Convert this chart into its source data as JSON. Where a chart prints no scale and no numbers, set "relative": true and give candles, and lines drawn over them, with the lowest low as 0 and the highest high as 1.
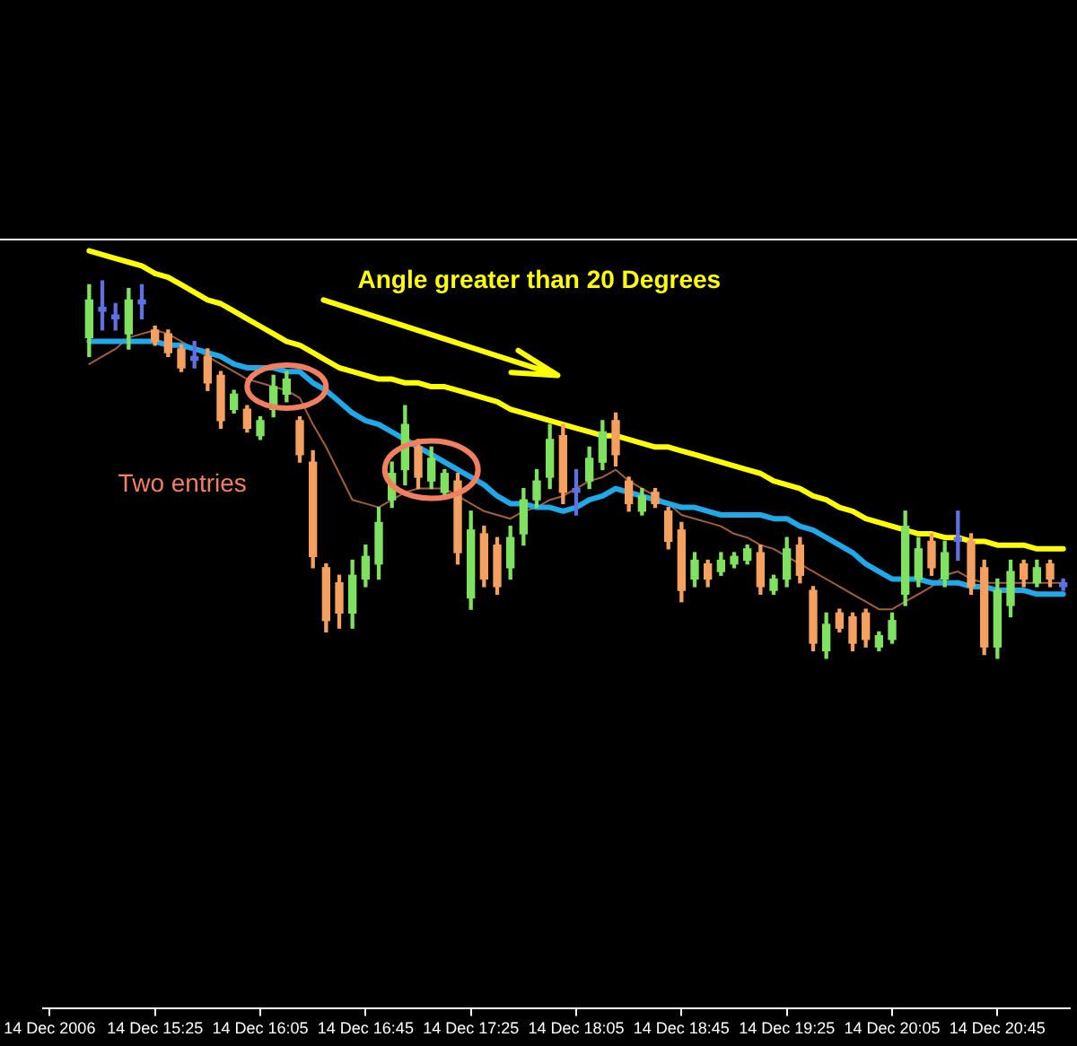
{
  "chart_data": {
    "type": "candlestick",
    "relative": true,
    "categories": [
      "14 Dec 2006",
      null,
      null,
      null,
      null,
      null,
      null,
      null,
      "14 Dec 15:25",
      null,
      null,
      null,
      null,
      null,
      null,
      null,
      "14 Dec 16:05",
      null,
      null,
      null,
      null,
      null,
      null,
      null,
      "14 Dec 16:45",
      null,
      null,
      null,
      null,
      null,
      null,
      null,
      "14 Dec 17:25",
      null,
      null,
      null,
      null,
      null,
      null,
      null,
      "14 Dec 18:05",
      null,
      null,
      null,
      null,
      null,
      null,
      null,
      "14 Dec 18:45",
      null,
      null,
      null,
      null,
      null,
      null,
      null,
      "14 Dec 19:25",
      null,
      null,
      null,
      null,
      null,
      null,
      null,
      "14 Dec 20:05",
      null,
      null,
      null,
      null,
      null,
      null,
      null,
      "14 Dec 20:45",
      null,
      null,
      null,
      null,
      null
    ],
    "ohlc": [
      null,
      null,
      null,
      [
        0.85,
        0.99,
        0.8,
        0.95
      ],
      [
        0.93,
        1,
        0.87,
        0.92
      ],
      [
        0.9,
        0.94,
        0.87,
        0.91
      ],
      [
        0.86,
        0.98,
        0.82,
        0.95
      ],
      [
        0.95,
        0.99,
        0.9,
        0.94
      ],
      [
        0.87,
        0.88,
        0.83,
        0.84
      ],
      [
        0.86,
        0.87,
        0.8,
        0.81
      ],
      [
        0.82,
        0.83,
        0.76,
        0.77
      ],
      [
        0.8,
        0.84,
        0.77,
        0.79
      ],
      [
        0.8,
        0.82,
        0.71,
        0.73
      ],
      [
        0.75,
        0.76,
        0.61,
        0.63
      ],
      [
        0.66,
        0.71,
        0.65,
        0.7
      ],
      [
        0.66,
        0.67,
        0.6,
        0.61
      ],
      [
        0.59,
        0.64,
        0.58,
        0.63
      ],
      [
        0.66,
        0.75,
        0.64,
        0.72
      ],
      [
        0.7,
        0.76,
        0.68,
        0.74
      ],
      [
        0.63,
        0.64,
        0.52,
        0.54
      ],
      [
        0.52,
        0.55,
        0.24,
        0.27
      ],
      [
        0.24,
        0.25,
        0.07,
        0.1
      ],
      [
        0.2,
        0.22,
        0.08,
        0.12
      ],
      [
        0.12,
        0.26,
        0.08,
        0.22
      ],
      [
        0.21,
        0.3,
        0.19,
        0.27
      ],
      [
        0.25,
        0.4,
        0.21,
        0.36
      ],
      [
        0.42,
        0.52,
        0.4,
        0.49
      ],
      [
        0.5,
        0.67,
        0.46,
        0.62
      ],
      [
        0.56,
        0.58,
        0.45,
        0.48
      ],
      [
        0.47,
        0.56,
        0.45,
        0.53
      ],
      [
        0.44,
        0.5,
        0.43,
        0.49
      ],
      [
        0.47,
        0.49,
        0.25,
        0.28
      ],
      [
        0.16,
        0.39,
        0.13,
        0.34
      ],
      [
        0.33,
        0.35,
        0.19,
        0.21
      ],
      [
        0.3,
        0.32,
        0.17,
        0.19
      ],
      [
        0.24,
        0.35,
        0.21,
        0.32
      ],
      [
        0.33,
        0.45,
        0.3,
        0.42
      ],
      [
        0.42,
        0.5,
        0.4,
        0.47
      ],
      [
        0.48,
        0.62,
        0.45,
        0.58
      ],
      [
        0.59,
        0.62,
        0.41,
        0.44
      ],
      [
        0.44,
        0.5,
        0.38,
        0.45
      ],
      [
        0.47,
        0.56,
        0.45,
        0.53
      ],
      [
        0.52,
        0.63,
        0.5,
        0.6
      ],
      [
        0.63,
        0.65,
        0.51,
        0.54
      ],
      [
        0.47,
        0.48,
        0.39,
        0.41
      ],
      [
        0.39,
        0.45,
        0.38,
        0.43
      ],
      [
        0.44,
        0.45,
        0.4,
        0.41
      ],
      [
        0.39,
        0.4,
        0.29,
        0.31
      ],
      [
        0.34,
        0.36,
        0.15,
        0.18
      ],
      [
        0.21,
        0.28,
        0.19,
        0.26
      ],
      [
        0.25,
        0.26,
        0.19,
        0.21
      ],
      [
        0.23,
        0.28,
        0.22,
        0.26
      ],
      [
        0.25,
        0.28,
        0.24,
        0.27
      ],
      [
        0.26,
        0.3,
        0.25,
        0.29
      ],
      [
        0.28,
        0.3,
        0.17,
        0.19
      ],
      [
        0.18,
        0.22,
        0.17,
        0.21
      ],
      [
        0.21,
        0.32,
        0.19,
        0.29
      ],
      [
        0.3,
        0.32,
        0.2,
        0.22
      ],
      [
        0.18,
        0.19,
        0.02,
        0.04
      ],
      [
        0.02,
        0.12,
        0,
        0.09
      ],
      [
        0.12,
        0.13,
        0.07,
        0.08
      ],
      [
        0.11,
        0.12,
        0.02,
        0.04
      ],
      [
        0.12,
        0.13,
        0.03,
        0.05
      ],
      [
        0.03,
        0.07,
        0.02,
        0.06
      ],
      [
        0.05,
        0.12,
        0.04,
        0.1
      ],
      [
        0.17,
        0.39,
        0.14,
        0.35
      ],
      [
        0.21,
        0.32,
        0.19,
        0.29
      ],
      [
        0.31,
        0.33,
        0.22,
        0.24
      ],
      [
        0.21,
        0.31,
        0.19,
        0.28
      ],
      [
        0.32,
        0.39,
        0.26,
        0.31
      ],
      [
        0.31,
        0.33,
        0.17,
        0.19
      ],
      [
        0.24,
        0.26,
        0.01,
        0.03
      ],
      [
        0.03,
        0.21,
        0,
        0.18
      ],
      [
        0.14,
        0.26,
        0.11,
        0.23
      ],
      [
        0.25,
        0.26,
        0.19,
        0.21
      ],
      [
        0.2,
        0.26,
        0.19,
        0.24
      ],
      [
        0.25,
        0.26,
        0.19,
        0.21
      ],
      [
        0.2,
        0.21,
        0.18,
        0.19
      ]
    ],
    "colors": [
      null,
      null,
      null,
      "#80e060",
      "#6070e0",
      "#6070e0",
      "#80e060",
      "#6070e0",
      "#f4a060",
      "#f4a060",
      "#f4a060",
      "#6070e0",
      "#f4a060",
      "#f4a060",
      "#80e060",
      "#f4a060",
      "#80e060",
      "#80e060",
      "#80e060",
      "#f4a060",
      "#f4a060",
      "#f4a060",
      "#f4a060",
      "#80e060",
      "#80e060",
      "#80e060",
      "#80e060",
      "#80e060",
      "#f4a060",
      "#80e060",
      "#80e060",
      "#f4a060",
      "#80e060",
      "#f4a060",
      "#f4a060",
      "#80e060",
      "#80e060",
      "#80e060",
      "#80e060",
      "#f4a060",
      "#6070e0",
      "#80e060",
      "#80e060",
      "#f4a060",
      "#f4a060",
      "#80e060",
      "#f4a060",
      "#f4a060",
      "#f4a060",
      "#80e060",
      "#f4a060",
      "#80e060",
      "#80e060",
      "#80e060",
      "#f4a060",
      "#80e060",
      "#80e060",
      "#f4a060",
      "#f4a060",
      "#80e060",
      "#f4a060",
      "#f4a060",
      "#f4a060",
      "#80e060",
      "#80e060",
      "#80e060",
      "#80e060",
      "#f4a060",
      "#80e060",
      "#6070e0",
      "#f4a060",
      "#f4a060",
      "#80e060",
      "#80e060",
      "#f4a060",
      "#80e060",
      "#f4a060",
      "#6070e0"
    ],
    "series": [
      {
        "type": "line",
        "color": "#ffff00",
        "values": [
          null,
          null,
          null,
          1.08,
          1.07,
          1.06,
          1.05,
          1.04,
          1.02,
          1.01,
          0.99,
          0.97,
          0.95,
          0.94,
          0.92,
          0.9,
          0.88,
          0.86,
          0.84,
          0.83,
          0.81,
          0.79,
          0.77,
          0.76,
          0.75,
          0.74,
          0.74,
          0.73,
          0.73,
          0.72,
          0.72,
          0.71,
          0.7,
          0.69,
          0.68,
          0.66,
          0.65,
          0.64,
          0.63,
          0.62,
          0.61,
          0.6,
          0.59,
          0.59,
          0.58,
          0.57,
          0.56,
          0.56,
          0.55,
          0.54,
          0.53,
          0.52,
          0.51,
          0.5,
          0.49,
          0.47,
          0.46,
          0.45,
          0.43,
          0.42,
          0.4,
          0.39,
          0.37,
          0.36,
          0.35,
          0.34,
          0.33,
          0.33,
          0.32,
          0.32,
          0.31,
          0.31,
          0.3,
          0.3,
          0.3,
          0.29,
          0.29,
          0.29
        ]
      },
      {
        "type": "line",
        "color": "#20a8e8",
        "values": [
          null,
          null,
          null,
          0.84,
          0.84,
          0.84,
          0.84,
          0.84,
          0.84,
          0.83,
          0.83,
          0.82,
          0.81,
          0.8,
          0.78,
          0.77,
          0.77,
          0.77,
          0.76,
          0.76,
          0.73,
          0.71,
          0.68,
          0.65,
          0.63,
          0.62,
          0.6,
          0.58,
          0.56,
          0.54,
          0.52,
          0.5,
          0.48,
          0.46,
          0.43,
          0.41,
          0.41,
          0.4,
          0.4,
          0.39,
          0.4,
          0.42,
          0.43,
          0.45,
          0.44,
          0.43,
          0.42,
          0.41,
          0.4,
          0.4,
          0.39,
          0.38,
          0.38,
          0.38,
          0.38,
          0.37,
          0.37,
          0.35,
          0.34,
          0.32,
          0.3,
          0.28,
          0.25,
          0.23,
          0.21,
          0.21,
          0.21,
          0.2,
          0.2,
          0.2,
          0.19,
          0.19,
          0.18,
          0.18,
          0.18,
          0.17,
          0.17,
          0.17
        ]
      },
      {
        "type": "line",
        "color": "#a0603c",
        "values": [
          null,
          null,
          null,
          0.78,
          0.8,
          0.82,
          0.85,
          0.86,
          0.87,
          0.86,
          0.84,
          0.82,
          0.8,
          0.78,
          0.76,
          0.74,
          0.73,
          0.72,
          0.71,
          0.69,
          0.62,
          0.56,
          0.49,
          0.42,
          0.41,
          0.4,
          0.42,
          0.44,
          0.45,
          0.45,
          0.45,
          0.43,
          0.41,
          0.39,
          0.38,
          0.37,
          0.39,
          0.4,
          0.42,
          0.43,
          0.45,
          0.47,
          0.48,
          0.5,
          0.47,
          0.45,
          0.43,
          0.41,
          0.38,
          0.37,
          0.36,
          0.35,
          0.33,
          0.32,
          0.3,
          0.29,
          0.27,
          0.25,
          0.23,
          0.21,
          0.19,
          0.17,
          0.15,
          0.13,
          0.13,
          0.15,
          0.17,
          0.19,
          0.22,
          0.23,
          0.21,
          0.2,
          0.2,
          0.2,
          0.2,
          0.2,
          0.2,
          0.2
        ]
      }
    ],
    "annotations": [
      "Angle greater than 20 Degrees",
      "Two entries"
    ],
    "tick_labels": "x",
    "grid": false,
    "legend": false,
    "marker": "none",
    "line_style": "solid"
  }
}
